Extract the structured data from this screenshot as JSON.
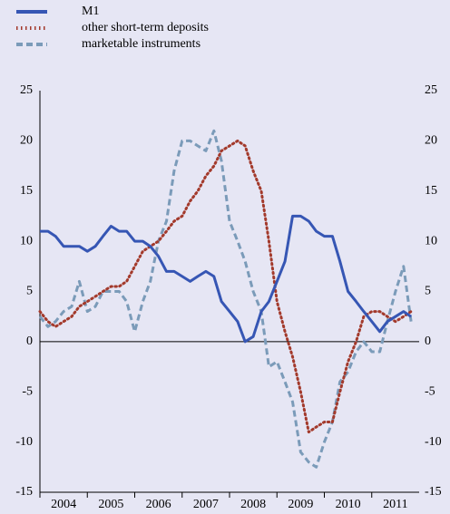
{
  "chart_data": {
    "type": "line",
    "x": [
      2004,
      2004.17,
      2004.33,
      2004.5,
      2004.67,
      2004.83,
      2005,
      2005.17,
      2005.33,
      2005.5,
      2005.67,
      2005.83,
      2006,
      2006.17,
      2006.33,
      2006.5,
      2006.67,
      2006.83,
      2007,
      2007.17,
      2007.33,
      2007.5,
      2007.67,
      2007.83,
      2008,
      2008.17,
      2008.33,
      2008.5,
      2008.67,
      2008.83,
      2009,
      2009.17,
      2009.33,
      2009.5,
      2009.67,
      2009.83,
      2010,
      2010.17,
      2010.33,
      2010.5,
      2010.67,
      2010.83,
      2011,
      2011.17,
      2011.33,
      2011.5,
      2011.67,
      2011.83
    ],
    "series": [
      {
        "name": "M1",
        "color": "#3656b4",
        "style": "solid",
        "values": [
          11,
          11,
          10.5,
          9.5,
          9.5,
          9.5,
          9,
          9.5,
          10.5,
          11.5,
          11,
          11,
          10,
          10,
          9.5,
          8.5,
          7,
          7,
          6.5,
          6,
          6.5,
          7,
          6.5,
          4,
          3,
          2,
          0,
          0.5,
          3,
          4,
          6,
          8,
          12.5,
          12.5,
          12,
          11,
          10.5,
          10.5,
          8,
          5,
          4,
          3,
          2,
          1,
          2,
          2.5,
          3,
          2.5
        ]
      },
      {
        "name": "other short-term deposits",
        "color": "#a33a2c",
        "style": "dotted",
        "values": [
          3,
          2,
          1.5,
          2,
          2.5,
          3.5,
          4,
          4.5,
          5,
          5.5,
          5.5,
          6,
          7.5,
          9,
          9.5,
          10,
          11,
          12,
          12.5,
          14,
          15,
          16.5,
          17.5,
          19,
          19.5,
          20,
          19.5,
          17,
          15,
          10,
          4,
          1,
          -1.5,
          -5,
          -9,
          -8.5,
          -8,
          -8,
          -5,
          -2,
          0,
          2.5,
          3,
          3,
          2.5,
          2,
          2.5,
          3
        ]
      },
      {
        "name": "marketable instruments",
        "color": "#7b9bb9",
        "style": "dashed",
        "values": [
          2.5,
          1.5,
          2,
          3,
          3.5,
          6,
          3,
          3.5,
          5,
          5,
          5,
          4,
          1,
          4,
          6,
          10,
          12,
          17,
          20,
          20,
          19.5,
          19,
          21,
          18,
          12,
          10,
          8,
          5,
          3,
          -2.5,
          -2,
          -4,
          -6,
          -11,
          -12,
          -12.5,
          -10,
          -8,
          -4,
          -3,
          -1,
          0,
          -1,
          -1,
          2,
          5,
          7.5,
          2
        ]
      }
    ],
    "xlim": [
      2004,
      2012
    ],
    "xticks": [
      {
        "value": 2004.5,
        "label": "2004"
      },
      {
        "value": 2005.5,
        "label": "2005"
      },
      {
        "value": 2006.5,
        "label": "2006"
      },
      {
        "value": 2007.5,
        "label": "2007"
      },
      {
        "value": 2008.5,
        "label": "2008"
      },
      {
        "value": 2009.5,
        "label": "2009"
      },
      {
        "value": 2010.5,
        "label": "2010"
      },
      {
        "value": 2011.5,
        "label": "2011"
      }
    ],
    "ylim": [
      -15,
      25
    ],
    "yticks": [
      -15,
      -10,
      -5,
      0,
      5,
      10,
      15,
      20,
      25
    ]
  }
}
